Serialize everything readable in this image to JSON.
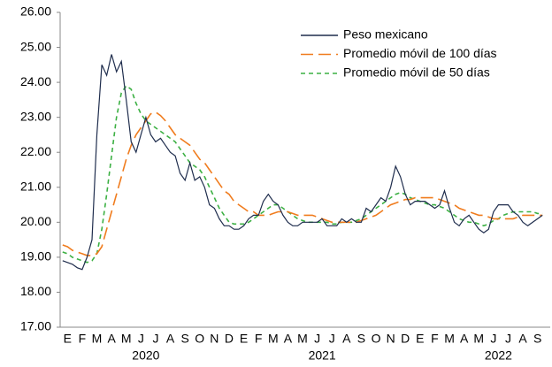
{
  "chart_data": {
    "type": "line",
    "categories": [
      null,
      "E",
      null,
      null,
      "F",
      null,
      null,
      "M",
      null,
      null,
      "A",
      null,
      null,
      "M",
      null,
      null,
      "J",
      null,
      null,
      "J",
      null,
      null,
      "A",
      null,
      null,
      "S",
      null,
      null,
      "O",
      null,
      null,
      "N",
      null,
      null,
      "D",
      null,
      null,
      "E",
      null,
      null,
      "F",
      null,
      null,
      "M",
      null,
      null,
      "A",
      null,
      null,
      "M",
      null,
      null,
      "J",
      null,
      null,
      "J",
      null,
      null,
      "A",
      null,
      null,
      "S",
      null,
      null,
      "O",
      null,
      null,
      "N",
      null,
      null,
      "D",
      null,
      null,
      "E",
      null,
      null,
      "F",
      null,
      null,
      "M",
      null,
      null,
      "A",
      null,
      null,
      "M",
      null,
      null,
      "J",
      null,
      null,
      "J",
      null,
      null,
      "A",
      null,
      null,
      "S",
      null
    ],
    "years": [
      "2020",
      "2021",
      "2022"
    ],
    "ylim": [
      17,
      26
    ],
    "yticks": [
      {
        "value": 17,
        "label": "17.00"
      },
      {
        "value": 18,
        "label": "18.00"
      },
      {
        "value": 19,
        "label": "19.00"
      },
      {
        "value": 20,
        "label": "20.00"
      },
      {
        "value": 21,
        "label": "21.00"
      },
      {
        "value": 22,
        "label": "22.00"
      },
      {
        "value": 23,
        "label": "23.00"
      },
      {
        "value": 24,
        "label": "24.00"
      },
      {
        "value": 25,
        "label": "25.00"
      },
      {
        "value": 26,
        "label": "26.00"
      }
    ],
    "grid": false,
    "legend": "top-right",
    "series": [
      {
        "name": "Peso mexicano",
        "color": "#1f2d4d",
        "dash": "none",
        "values": [
          18.9,
          18.85,
          18.8,
          18.7,
          18.65,
          19.0,
          19.5,
          22.5,
          24.5,
          24.2,
          24.8,
          24.3,
          24.6,
          23.5,
          22.3,
          22.0,
          22.5,
          23.0,
          22.5,
          22.3,
          22.4,
          22.2,
          22.0,
          21.9,
          21.4,
          21.2,
          21.7,
          21.2,
          21.3,
          21.0,
          20.5,
          20.4,
          20.1,
          19.9,
          19.9,
          19.8,
          19.8,
          19.9,
          20.1,
          20.2,
          20.2,
          20.6,
          20.8,
          20.6,
          20.5,
          20.2,
          20.0,
          19.9,
          19.9,
          20.0,
          20.0,
          20.0,
          20.0,
          20.1,
          19.9,
          19.9,
          19.9,
          20.1,
          20.0,
          20.1,
          20.0,
          20.0,
          20.4,
          20.3,
          20.5,
          20.7,
          20.6,
          21.0,
          21.6,
          21.3,
          20.8,
          20.5,
          20.6,
          20.6,
          20.6,
          20.5,
          20.4,
          20.5,
          20.9,
          20.4,
          20.0,
          19.9,
          20.1,
          20.2,
          20.0,
          19.8,
          19.7,
          19.8,
          20.3,
          20.5,
          20.5,
          20.5,
          20.3,
          20.2,
          20.0,
          19.9,
          20.0,
          20.1,
          20.2
        ]
      },
      {
        "name": "Promedio móvil de 100 días",
        "color": "#f07c1e",
        "dash": "14 6",
        "values": [
          19.35,
          19.3,
          19.2,
          19.15,
          19.1,
          19.05,
          19.05,
          19.1,
          19.3,
          19.8,
          20.3,
          20.8,
          21.3,
          21.8,
          22.2,
          22.5,
          22.7,
          22.9,
          23.1,
          23.15,
          23.05,
          22.9,
          22.7,
          22.5,
          22.4,
          22.3,
          22.2,
          22.0,
          21.8,
          21.7,
          21.5,
          21.3,
          21.1,
          20.9,
          20.8,
          20.6,
          20.5,
          20.4,
          20.3,
          20.3,
          20.2,
          20.2,
          20.2,
          20.25,
          20.3,
          20.3,
          20.3,
          20.25,
          20.2,
          20.2,
          20.2,
          20.2,
          20.15,
          20.1,
          20.05,
          20.0,
          20.0,
          20.0,
          20.0,
          20.0,
          20.0,
          20.05,
          20.1,
          20.15,
          20.2,
          20.3,
          20.4,
          20.5,
          20.55,
          20.6,
          20.65,
          20.65,
          20.7,
          20.7,
          20.7,
          20.7,
          20.7,
          20.65,
          20.6,
          20.55,
          20.5,
          20.4,
          20.35,
          20.3,
          20.25,
          20.2,
          20.2,
          20.15,
          20.1,
          20.1,
          20.1,
          20.1,
          20.1,
          20.15,
          20.2,
          20.2,
          20.2,
          20.2,
          20.2
        ]
      },
      {
        "name": "Promedio móvil de 50 días",
        "color": "#3cb043",
        "dash": "5 4",
        "values": [
          19.15,
          19.1,
          19.0,
          18.95,
          18.9,
          18.85,
          18.9,
          19.1,
          19.8,
          20.8,
          21.9,
          23.0,
          23.7,
          23.9,
          23.8,
          23.4,
          23.1,
          22.9,
          22.8,
          22.7,
          22.6,
          22.5,
          22.4,
          22.3,
          22.1,
          21.9,
          21.7,
          21.6,
          21.5,
          21.3,
          21.0,
          20.7,
          20.4,
          20.2,
          20.0,
          19.95,
          19.95,
          19.95,
          20.0,
          20.1,
          20.2,
          20.3,
          20.4,
          20.5,
          20.5,
          20.4,
          20.3,
          20.2,
          20.1,
          20.05,
          20.0,
          20.0,
          20.0,
          20.0,
          20.0,
          19.95,
          19.95,
          20.0,
          20.0,
          20.0,
          20.05,
          20.1,
          20.2,
          20.3,
          20.4,
          20.5,
          20.6,
          20.7,
          20.8,
          20.85,
          20.8,
          20.7,
          20.65,
          20.6,
          20.55,
          20.5,
          20.5,
          20.45,
          20.4,
          20.3,
          20.2,
          20.1,
          20.05,
          20.0,
          20.0,
          19.95,
          19.9,
          19.95,
          20.05,
          20.1,
          20.2,
          20.25,
          20.3,
          20.3,
          20.3,
          20.3,
          20.3,
          20.25,
          20.25
        ]
      }
    ]
  }
}
